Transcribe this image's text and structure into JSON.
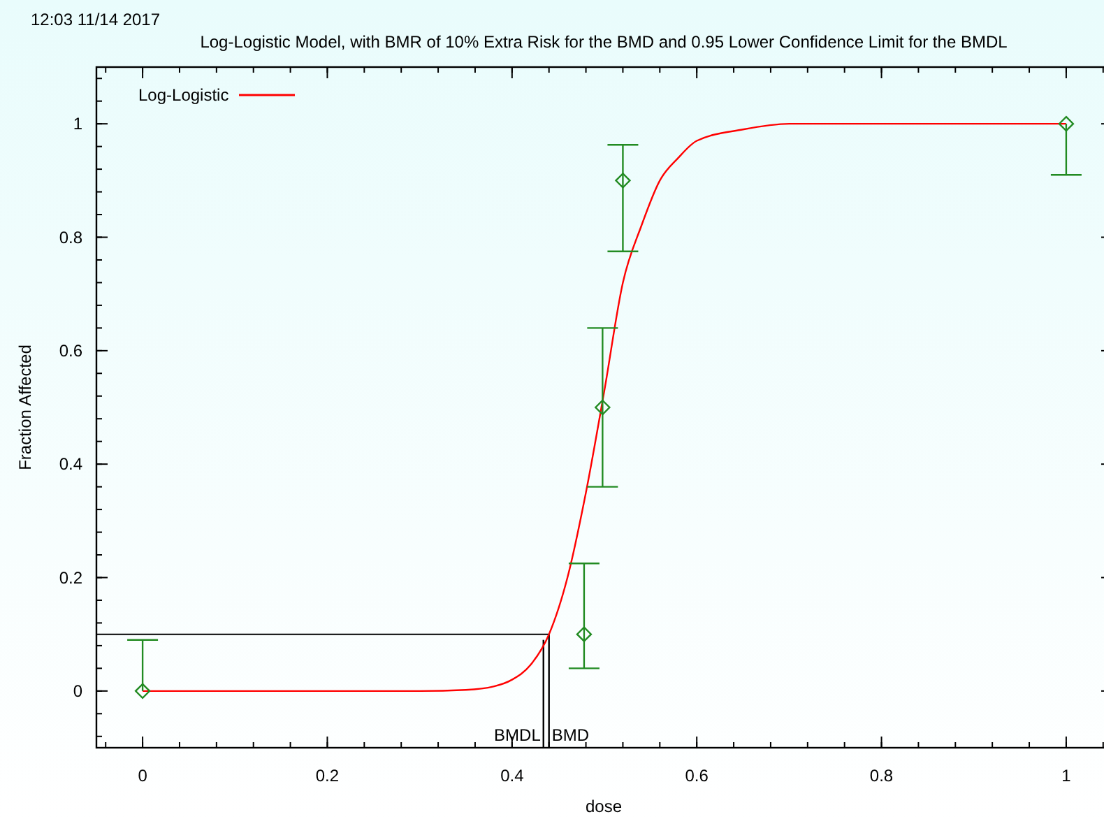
{
  "chart_data": {
    "type": "line",
    "title": "Log-Logistic Model, with BMR of 10% Extra Risk for the BMD and 0.95 Lower Confidence Limit for the BMDL",
    "xlabel": "dose",
    "ylabel": "Fraction Affected",
    "annotations": [
      "12:03 11/14 2017"
    ],
    "series": [
      {
        "name": "Log-Logistic",
        "color": "#ff0000",
        "x": [
          0,
          0.1,
          0.2,
          0.3,
          0.35,
          0.38,
          0.4,
          0.42,
          0.44,
          0.46,
          0.48,
          0.5,
          0.52,
          0.54,
          0.56,
          0.58,
          0.6,
          0.65,
          0.7,
          0.8,
          1
        ],
        "values": [
          0,
          0,
          0,
          0,
          0.002,
          0.008,
          0.02,
          0.046,
          0.1,
          0.2,
          0.35,
          0.53,
          0.72,
          0.82,
          0.9,
          0.94,
          0.97,
          0.99,
          1,
          1,
          1
        ]
      },
      {
        "type": "scatter",
        "color": "#228b22",
        "marker": "diamond",
        "x": [
          0,
          0.478,
          0.498,
          0.52,
          1
        ],
        "values": [
          0,
          0.1,
          0.5,
          0.9,
          1
        ],
        "errors": [
          [
            0,
            0.09
          ],
          [
            0.04,
            0.225
          ],
          [
            0.36,
            0.64
          ],
          [
            0.775,
            0.963
          ],
          [
            0.91,
            1
          ]
        ]
      }
    ],
    "ref_lines": [
      {
        "axis": "y",
        "value": 0.1,
        "color": "#000000"
      },
      {
        "axis": "x",
        "value": 0.434,
        "label": "BMDL",
        "color": "#000000"
      },
      {
        "axis": "x",
        "value": 0.44,
        "label": "BMD",
        "color": "#000000"
      }
    ],
    "xlim": [
      -0.05,
      1.05
    ],
    "ylim": [
      -0.1,
      1.1
    ],
    "xticks": [
      0,
      0.2,
      0.4,
      0.6,
      0.8,
      1
    ],
    "yticks": [
      0,
      0.2,
      0.4,
      0.6,
      0.8,
      1
    ],
    "grid": false,
    "legend": "top left"
  }
}
